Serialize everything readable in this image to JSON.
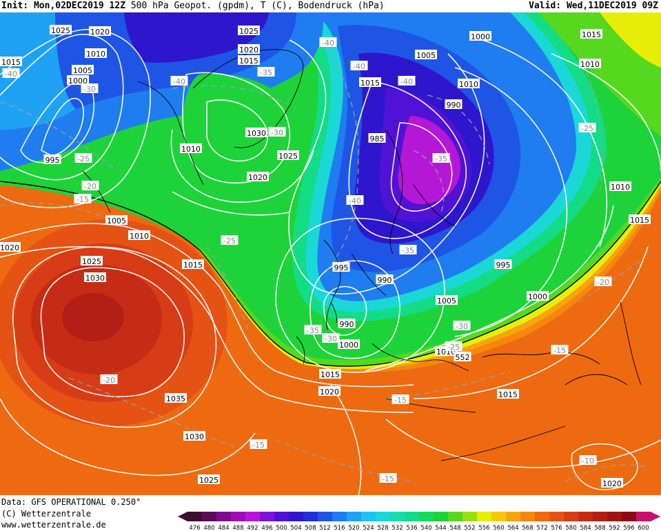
{
  "header": {
    "init_label": "Init:",
    "init_value": "Mon,02DEC2019 12Z",
    "title": "500 hPa Geopot. (gpdm), T (C), Bodendruck (hPa)",
    "valid_label": "Valid:",
    "valid_value": "Wed,11DEC2019 09Z"
  },
  "footer": {
    "data_line": "Data: GFS OPERATIONAL 0.250°",
    "copyright": "(C) Wetterzentrale",
    "website": "www.wetterzentrale.de"
  },
  "legend": {
    "values": [
      "476",
      "480",
      "484",
      "488",
      "492",
      "496",
      "500",
      "504",
      "508",
      "512",
      "516",
      "520",
      "524",
      "528",
      "532",
      "536",
      "540",
      "544",
      "548",
      "552",
      "556",
      "560",
      "564",
      "568",
      "572",
      "576",
      "580",
      "584",
      "588",
      "592",
      "596",
      "600"
    ],
    "colors": [
      "#3c0f30",
      "#5a0c55",
      "#7a0d8c",
      "#9b10b5",
      "#b418d6",
      "#7d14d8",
      "#5012d4",
      "#2d16cc",
      "#2030d8",
      "#1e55e4",
      "#1f7df0",
      "#20a2f4",
      "#1ec3f0",
      "#1bd8d6",
      "#17dcb0",
      "#14dc86",
      "#18d85e",
      "#1ed33a",
      "#55d81e",
      "#98e014",
      "#e8ee0a",
      "#f5c80c",
      "#f8a40e",
      "#f5860e",
      "#ee6a10",
      "#e45214",
      "#d63c16",
      "#c52c16",
      "#b31e16",
      "#a01414",
      "#8a0c12",
      "#c8106e"
    ]
  },
  "pressure_labels": [
    {
      "text": "1025"
    },
    {
      "text": "1020"
    },
    {
      "text": "1010"
    },
    {
      "text": "1015"
    },
    {
      "text": "1005"
    },
    {
      "text": "1000"
    },
    {
      "text": "1025"
    },
    {
      "text": "1020"
    },
    {
      "text": "1015"
    },
    {
      "text": "1010"
    },
    {
      "text": "1005"
    },
    {
      "text": "1000"
    },
    {
      "text": "1015"
    },
    {
      "text": "1010"
    },
    {
      "text": "990"
    },
    {
      "text": "985"
    },
    {
      "text": "995"
    },
    {
      "text": "1030"
    },
    {
      "text": "1025"
    },
    {
      "text": "1020"
    },
    {
      "text": "1010"
    },
    {
      "text": "995"
    },
    {
      "text": "1015"
    },
    {
      "text": "1010"
    },
    {
      "text": "1015"
    },
    {
      "text": "1005"
    },
    {
      "text": "1010"
    },
    {
      "text": "1020"
    },
    {
      "text": "1025"
    },
    {
      "text": "1030"
    },
    {
      "text": "1015"
    },
    {
      "text": "995"
    },
    {
      "text": "990"
    },
    {
      "text": "1000"
    },
    {
      "text": "1005"
    },
    {
      "text": "990"
    },
    {
      "text": "1000"
    },
    {
      "text": "1010"
    },
    {
      "text": "1015"
    },
    {
      "text": "1020"
    },
    {
      "text": "1015"
    },
    {
      "text": "1035"
    },
    {
      "text": "1030"
    },
    {
      "text": "1025"
    },
    {
      "text": "1020"
    },
    {
      "text": "1015"
    }
  ],
  "temperature_labels": [
    {
      "text": "-40"
    },
    {
      "text": "-30"
    },
    {
      "text": "-40"
    },
    {
      "text": "-35"
    },
    {
      "text": "-40"
    },
    {
      "text": "-40"
    },
    {
      "text": "-40"
    },
    {
      "text": "-30"
    },
    {
      "text": "-25"
    },
    {
      "text": "-20"
    },
    {
      "text": "-15"
    },
    {
      "text": "-25"
    },
    {
      "text": "-35"
    },
    {
      "text": "-40"
    },
    {
      "text": "-35"
    },
    {
      "text": "-25"
    },
    {
      "text": "-20"
    },
    {
      "text": "-35"
    },
    {
      "text": "-30"
    },
    {
      "text": "-30"
    },
    {
      "text": "-25"
    },
    {
      "text": "-15"
    },
    {
      "text": "-20"
    },
    {
      "text": "-15"
    },
    {
      "text": "-15"
    },
    {
      "text": "-15"
    },
    {
      "text": "-10"
    },
    {
      "text": "-20"
    },
    {
      "text": "-25"
    }
  ],
  "geopotential_labels": [
    {
      "text": "552"
    }
  ]
}
